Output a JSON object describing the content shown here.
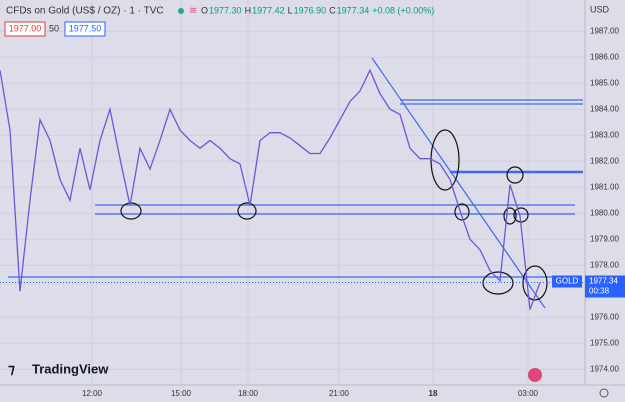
{
  "chart_data": {
    "type": "line",
    "title": "CFDs on Gold (US$ / OZ) · 1 · TVC",
    "ohlc": [
      {
        "key": "O",
        "value": "1977.30"
      },
      {
        "key": "H",
        "value": "1977.42"
      },
      {
        "key": "L",
        "value": "1976.90"
      },
      {
        "key": "C",
        "value": "1977.34"
      }
    ],
    "change": "+0.08 (+0.00%)",
    "bid": "1977.00",
    "spread": "50",
    "ask": "1977.50",
    "currency": "USD",
    "symbol_label": "GOLD",
    "last_price": {
      "value": 1977.34,
      "label": "1977.34"
    },
    "countdown": "00:38",
    "logo": "TradingView",
    "series": [
      {
        "name": "GOLD",
        "color": "#6f55d8",
        "values": [
          1985.5,
          1983.2,
          1977.0,
          1980.5,
          1983.6,
          1982.8,
          1981.3,
          1980.5,
          1982.5,
          1980.9,
          1982.8,
          1984.0,
          1982.1,
          1980.3,
          1982.5,
          1981.7,
          1982.8,
          1984.0,
          1983.2,
          1982.8,
          1982.5,
          1982.8,
          1982.5,
          1982.1,
          1981.9,
          1980.3,
          1982.8,
          1983.1,
          1983.1,
          1982.9,
          1982.6,
          1982.3,
          1982.3,
          1982.9,
          1983.6,
          1984.3,
          1984.7,
          1985.5,
          1984.6,
          1984.0,
          1983.8,
          1982.5,
          1982.1,
          1982.1,
          1981.9,
          1981.3,
          1980.1,
          1979.0,
          1978.6,
          1977.8,
          1977.4,
          1981.1,
          1979.9,
          1976.3,
          1977.34
        ]
      }
    ],
    "xlim": [
      0,
      58.5
    ],
    "xticks": [
      {
        "value": 9.2,
        "label": "12:00"
      },
      {
        "value": 18.1,
        "label": "15:00"
      },
      {
        "value": 24.8,
        "label": "18:00"
      },
      {
        "value": 33.9,
        "label": "21:00"
      },
      {
        "value": 43.3,
        "label": "18"
      },
      {
        "value": 52.8,
        "label": "03:00"
      }
    ],
    "ylim": [
      1973.4,
      1988.2
    ],
    "yticks": [
      {
        "value": 1974,
        "label": "1974.00"
      },
      {
        "value": 1975,
        "label": "1975.00"
      },
      {
        "value": 1976,
        "label": "1976.00"
      },
      {
        "value": 1978,
        "label": "1978.00"
      },
      {
        "value": 1979,
        "label": "1979.00"
      },
      {
        "value": 1980,
        "label": "1980.00"
      },
      {
        "value": 1981,
        "label": "1981.00"
      },
      {
        "value": 1982,
        "label": "1982.00"
      },
      {
        "value": 1983,
        "label": "1983.00"
      },
      {
        "value": 1984,
        "label": "1984.00"
      },
      {
        "value": 1985,
        "label": "1985.00"
      },
      {
        "value": 1986,
        "label": "1986.00"
      },
      {
        "value": 1987,
        "label": "1987.00"
      }
    ],
    "grid": true
  }
}
